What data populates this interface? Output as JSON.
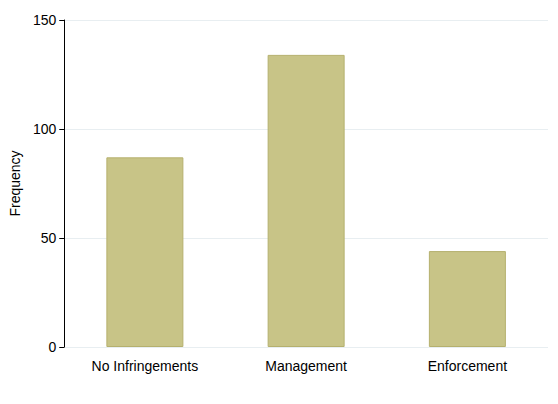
{
  "chart_data": {
    "type": "bar",
    "ylabel": "Frequency",
    "categories": [
      "No Infringements",
      "Management",
      "Enforcement"
    ],
    "values": [
      87,
      134,
      44
    ],
    "color": "#c8c487",
    "ylim": [
      0,
      150
    ],
    "yticks": [
      0,
      50,
      100,
      150
    ],
    "grid": true
  }
}
